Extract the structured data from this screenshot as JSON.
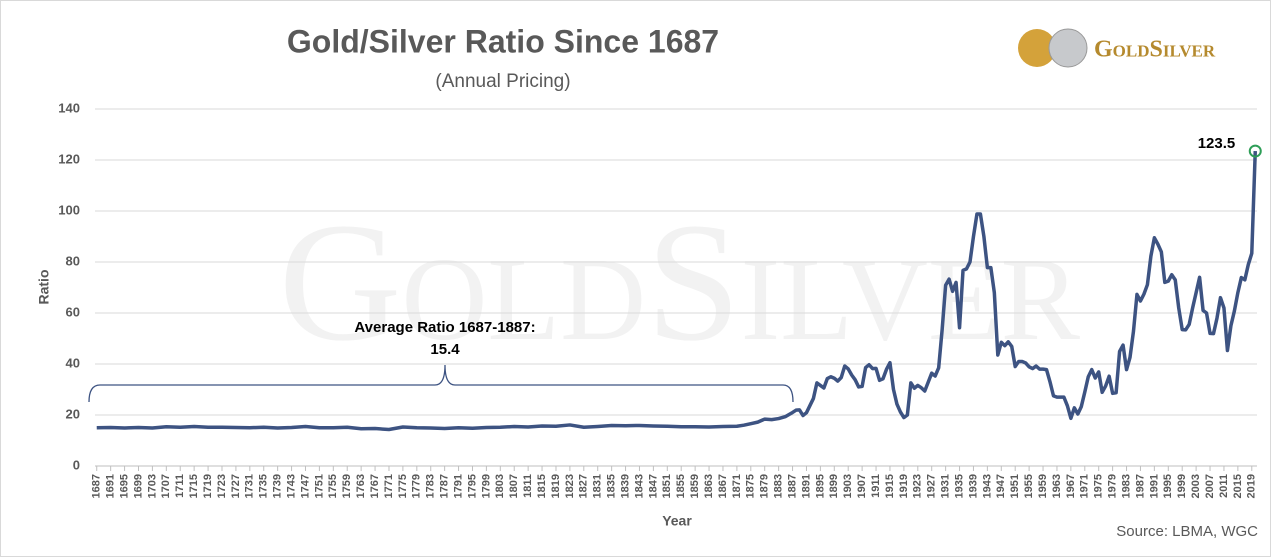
{
  "chart_data": {
    "type": "line",
    "title": "Gold/Silver Ratio Since 1687",
    "subtitle": "(Annual Pricing)",
    "y_label": "Ratio",
    "x_label": "Year",
    "source": "Source: LBMA, WGC",
    "logo": "GoldSilver",
    "annotation": "Average Ratio 1687-1887:",
    "annotation_value": "15.4",
    "color": "#3d5382",
    "marker_color": "#2e9e57",
    "grid": true,
    "xlim": [
      1686.5,
      2020.5
    ],
    "ylim": [
      0,
      140
    ],
    "yticks": [
      0,
      20,
      40,
      60,
      80,
      100,
      120,
      140
    ],
    "xticks": [
      1687,
      1691,
      1695,
      1699,
      1703,
      1707,
      1711,
      1715,
      1719,
      1723,
      1727,
      1731,
      1735,
      1739,
      1743,
      1747,
      1751,
      1755,
      1759,
      1763,
      1767,
      1771,
      1775,
      1779,
      1783,
      1787,
      1791,
      1795,
      1799,
      1803,
      1807,
      1811,
      1815,
      1819,
      1823,
      1827,
      1831,
      1835,
      1839,
      1843,
      1847,
      1851,
      1855,
      1859,
      1863,
      1867,
      1871,
      1875,
      1879,
      1883,
      1887,
      1891,
      1895,
      1899,
      1903,
      1907,
      1911,
      1915,
      1919,
      1923,
      1927,
      1931,
      1935,
      1939,
      1943,
      1947,
      1951,
      1955,
      1959,
      1963,
      1967,
      1971,
      1975,
      1979,
      1983,
      1987,
      1991,
      1995,
      1999,
      2003,
      2007,
      2011,
      2015,
      2019
    ],
    "x": [
      1687,
      1691,
      1695,
      1699,
      1703,
      1707,
      1711,
      1715,
      1719,
      1723,
      1727,
      1731,
      1735,
      1739,
      1743,
      1747,
      1751,
      1755,
      1759,
      1763,
      1767,
      1771,
      1775,
      1779,
      1783,
      1787,
      1791,
      1795,
      1799,
      1803,
      1807,
      1811,
      1815,
      1819,
      1823,
      1827,
      1831,
      1835,
      1839,
      1843,
      1847,
      1851,
      1855,
      1859,
      1863,
      1867,
      1871,
      1873,
      1875,
      1877,
      1879,
      1881,
      1883,
      1885,
      1887,
      1888,
      1889,
      1890,
      1891,
      1892,
      1893,
      1894,
      1895,
      1896,
      1897,
      1898,
      1899,
      1900,
      1901,
      1902,
      1903,
      1904,
      1905,
      1906,
      1907,
      1908,
      1909,
      1910,
      1911,
      1912,
      1913,
      1914,
      1915,
      1916,
      1917,
      1918,
      1919,
      1920,
      1921,
      1922,
      1923,
      1924,
      1925,
      1926,
      1927,
      1928,
      1929,
      1930,
      1931,
      1932,
      1933,
      1934,
      1935,
      1936,
      1937,
      1938,
      1939,
      1940,
      1941,
      1942,
      1943,
      1944,
      1945,
      1946,
      1947,
      1948,
      1949,
      1950,
      1951,
      1952,
      1953,
      1954,
      1955,
      1956,
      1957,
      1958,
      1959,
      1960,
      1961,
      1962,
      1963,
      1964,
      1965,
      1966,
      1967,
      1968,
      1969,
      1970,
      1971,
      1972,
      1973,
      1974,
      1975,
      1976,
      1977,
      1978,
      1979,
      1980,
      1981,
      1982,
      1983,
      1984,
      1985,
      1986,
      1987,
      1988,
      1989,
      1990,
      1991,
      1992,
      1993,
      1994,
      1995,
      1996,
      1997,
      1998,
      1999,
      2000,
      2001,
      2002,
      2003,
      2004,
      2005,
      2006,
      2007,
      2008,
      2009,
      2010,
      2011,
      2012,
      2013,
      2014,
      2015,
      2016,
      2017,
      2018,
      2019,
      2020
    ],
    "values": [
      15,
      15.1,
      14.9,
      15.1,
      14.9,
      15.4,
      15.2,
      15.5,
      15.2,
      15.2,
      15.1,
      15,
      15.2,
      14.9,
      15.1,
      15.5,
      15,
      15,
      15.2,
      14.6,
      14.7,
      14.3,
      15.3,
      15,
      14.9,
      14.7,
      15,
      14.8,
      15.1,
      15.2,
      15.5,
      15.3,
      15.7,
      15.6,
      16.1,
      15.2,
      15.5,
      15.9,
      15.8,
      15.9,
      15.7,
      15.6,
      15.4,
      15.4,
      15.3,
      15.5,
      15.6,
      16,
      16.6,
      17.2,
      18.4,
      18.2,
      18.6,
      19.4,
      21,
      21.9,
      22,
      19.8,
      20.9,
      23.7,
      26.5,
      32.6,
      31.6,
      30.6,
      34.3,
      35,
      34.4,
      33.3,
      34.7,
      39.2,
      38.1,
      35.7,
      33.8,
      31,
      31.2,
      38.6,
      39.7,
      38.2,
      38.3,
      33.6,
      34.2,
      37.9,
      40.5,
      30.1,
      24.3,
      21.2,
      19,
      20,
      32.6,
      30.5,
      31.6,
      30.7,
      29.4,
      32.9,
      36.4,
      35.3,
      38.5,
      53.5,
      70.9,
      73.3,
      68.5,
      72,
      54.2,
      76.7,
      77.3,
      80,
      90,
      98.8,
      98.8,
      90,
      77.8,
      77.8,
      68,
      43.5,
      48.5,
      47.2,
      48.7,
      46.9,
      39,
      41,
      41,
      40.4,
      38.9,
      38.2,
      39.2,
      38,
      38,
      37.8,
      33,
      27.5,
      27,
      27,
      27,
      23.6,
      18.7,
      22.8,
      20.4,
      23.3,
      29,
      35,
      37.8,
      34.5,
      36.9,
      28.9,
      31.4,
      35.2,
      28.5,
      28.7,
      44.9,
      47.4,
      37.8,
      42.6,
      52.9,
      67.3,
      64.7,
      67.4,
      71.1,
      82.3,
      89.5,
      87,
      84,
      72,
      72.5,
      75,
      73,
      62,
      53.5,
      53.4,
      55.5,
      62,
      68,
      74,
      61,
      60,
      52,
      51.9,
      58,
      66,
      62,
      45.3,
      55,
      60.8,
      68,
      73.9,
      73,
      79,
      83.4,
      123.5
    ]
  }
}
